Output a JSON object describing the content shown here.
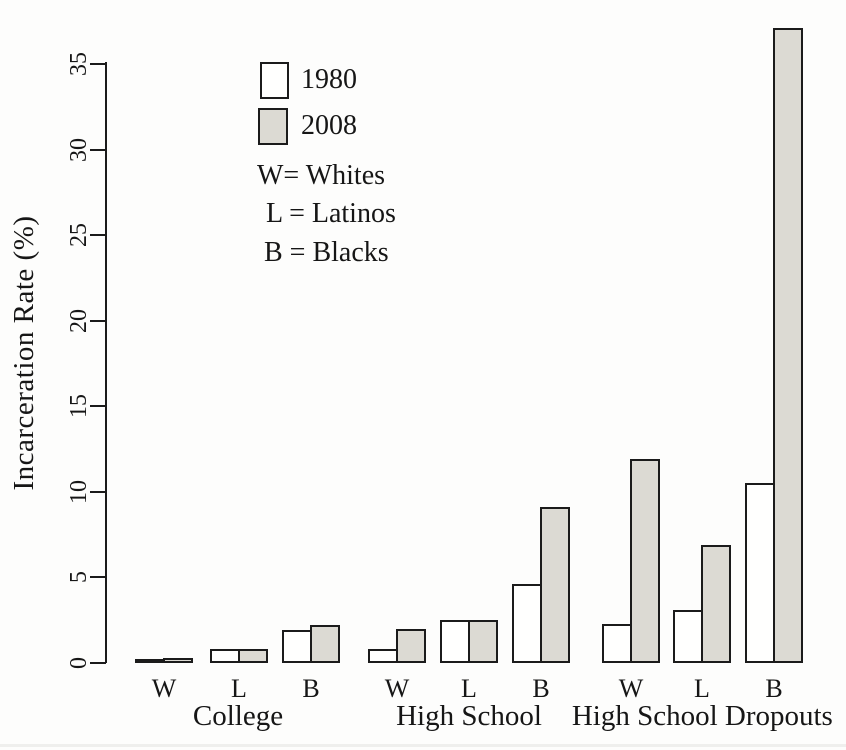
{
  "figure": {
    "ylabel": "Incarceration Rate (%)",
    "legend": {
      "key": [
        "W= Whites",
        "L = Latinos",
        "B = Blacks"
      ]
    }
  },
  "chart_data": {
    "type": "bar",
    "title": "",
    "xlabel": "",
    "ylabel": "Incarceration Rate (%)",
    "ylim": [
      0,
      37.5
    ],
    "yticks": [
      0,
      5,
      10,
      15,
      20,
      25,
      30,
      35
    ],
    "grid": false,
    "legend_position": "top-left-inside",
    "groups": [
      {
        "label": "College",
        "categories": [
          "W",
          "L",
          "B"
        ]
      },
      {
        "label": "High School",
        "categories": [
          "W",
          "L",
          "B"
        ]
      },
      {
        "label": "High School Dropouts",
        "categories": [
          "W",
          "L",
          "B"
        ]
      }
    ],
    "series": [
      {
        "name": "1980",
        "fill": "#ffffff",
        "values": [
          [
            0.2,
            0.8,
            1.9
          ],
          [
            0.8,
            2.5,
            4.6
          ],
          [
            2.3,
            3.1,
            10.5
          ]
        ]
      },
      {
        "name": "2008",
        "fill": "#dcdad3",
        "values": [
          [
            0.3,
            0.8,
            2.2
          ],
          [
            2.0,
            2.5,
            9.1
          ],
          [
            11.9,
            6.9,
            37.1
          ]
        ]
      }
    ],
    "category_key": {
      "W": "Whites",
      "L": "Latinos",
      "B": "Blacks"
    }
  }
}
